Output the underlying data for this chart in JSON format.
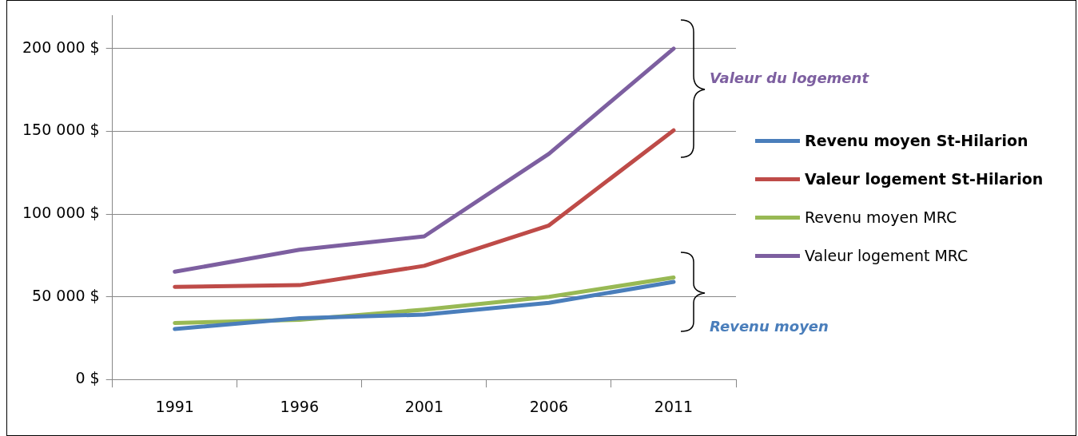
{
  "chart_data": {
    "type": "line",
    "categories": [
      "1991",
      "1996",
      "2001",
      "2006",
      "2011"
    ],
    "series": [
      {
        "name": "Revenu moyen St-Hilarion",
        "color": "#4a7ebb",
        "values": [
          30500,
          37000,
          39200,
          46300,
          59000
        ]
      },
      {
        "name": "Valeur logement St-Hilarion",
        "color": "#be4b48",
        "values": [
          56000,
          57000,
          68700,
          93100,
          150600
        ]
      },
      {
        "name": "Revenu moyen MRC",
        "color": "#98b954",
        "values": [
          34100,
          36100,
          42200,
          49900,
          61600
        ]
      },
      {
        "name": "Valeur logement MRC",
        "color": "#7d5fa0",
        "values": [
          65100,
          78400,
          86500,
          136400,
          200000
        ]
      }
    ],
    "ylim": [
      0,
      220000
    ],
    "yticks": [
      {
        "value": 0,
        "label": "0 $"
      },
      {
        "value": 50000,
        "label": "50 000 $"
      },
      {
        "value": 100000,
        "label": "100 000 $"
      },
      {
        "value": 150000,
        "label": "150 000 $"
      },
      {
        "value": 200000,
        "label": "200 000 $"
      }
    ],
    "grid": "y",
    "legend": "right",
    "marker": "none",
    "line_style": "solid",
    "annotations": [
      "Valeur du logement",
      "Revenu moyen"
    ]
  }
}
